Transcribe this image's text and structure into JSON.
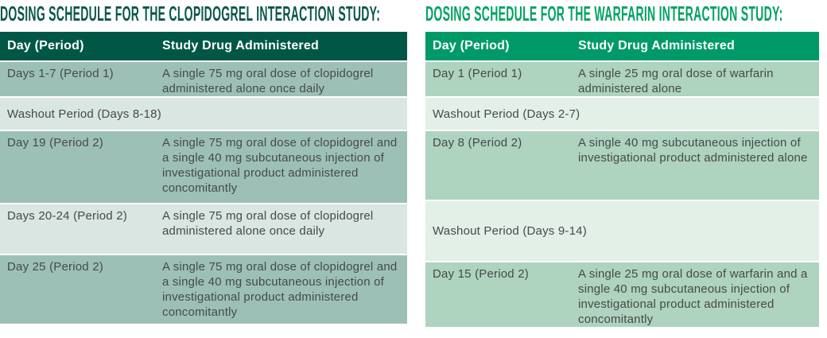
{
  "theme": {
    "clopi_title": "#0b5649",
    "clopi_header_bg": "#005745",
    "clopi_row_medium": "#9dc0b6",
    "clopi_row_light": "#d9e6e1",
    "warf_title": "#00a263",
    "warf_header_bg": "#009a68",
    "warf_row_medium": "#aed3bf",
    "warf_row_light": "#e3f0e8",
    "header_text": "#ffffff",
    "body_text": "#454a48",
    "page_bg": "#ffffff"
  },
  "clopidogrel": {
    "title": "DOSING SCHEDULE FOR THE CLOPIDOGREL INTERACTION STUDY:",
    "columns": [
      "Day (Period)",
      "Study Drug Administered"
    ],
    "rows": [
      {
        "day": "Days 1-7 (Period 1)",
        "drug": "A single 75 mg oral dose of clopidogrel administered alone once daily"
      },
      {
        "label": "Washout Period (Days 8-18)"
      },
      {
        "day": "Day 19 (Period 2)",
        "drug": "A single 75 mg oral dose of clopidogrel and a single 40 mg subcutaneous injection of investigational product administered concomitantly"
      },
      {
        "day": "Days 20-24 (Period 2)",
        "drug": "A single 75 mg oral dose of clopidogrel administered alone once daily"
      },
      {
        "day": "Day 25 (Period 2)",
        "drug": "A single 75 mg oral dose of clopidogrel and a single 40 mg subcutaneous injection of investigational product administered concomitantly"
      }
    ]
  },
  "warfarin": {
    "title": "DOSING SCHEDULE FOR THE WARFARIN INTERACTION STUDY:",
    "columns": [
      "Day (Period)",
      "Study Drug Administered"
    ],
    "rows": [
      {
        "day": "Day 1 (Period 1)",
        "drug": "A single 25 mg oral dose of warfarin administered alone"
      },
      {
        "label": "Washout Period (Days 2-7)"
      },
      {
        "day": "Day 8 (Period 2)",
        "drug": "A single 40 mg subcutaneous injection of investigational product administered alone"
      },
      {
        "label": "Washout Period (Days 9-14)"
      },
      {
        "day": "Day 15 (Period 2)",
        "drug": "A single 25 mg oral dose of warfarin and a single 40 mg subcutaneous injection of investigational product administered concomitantly"
      }
    ]
  }
}
